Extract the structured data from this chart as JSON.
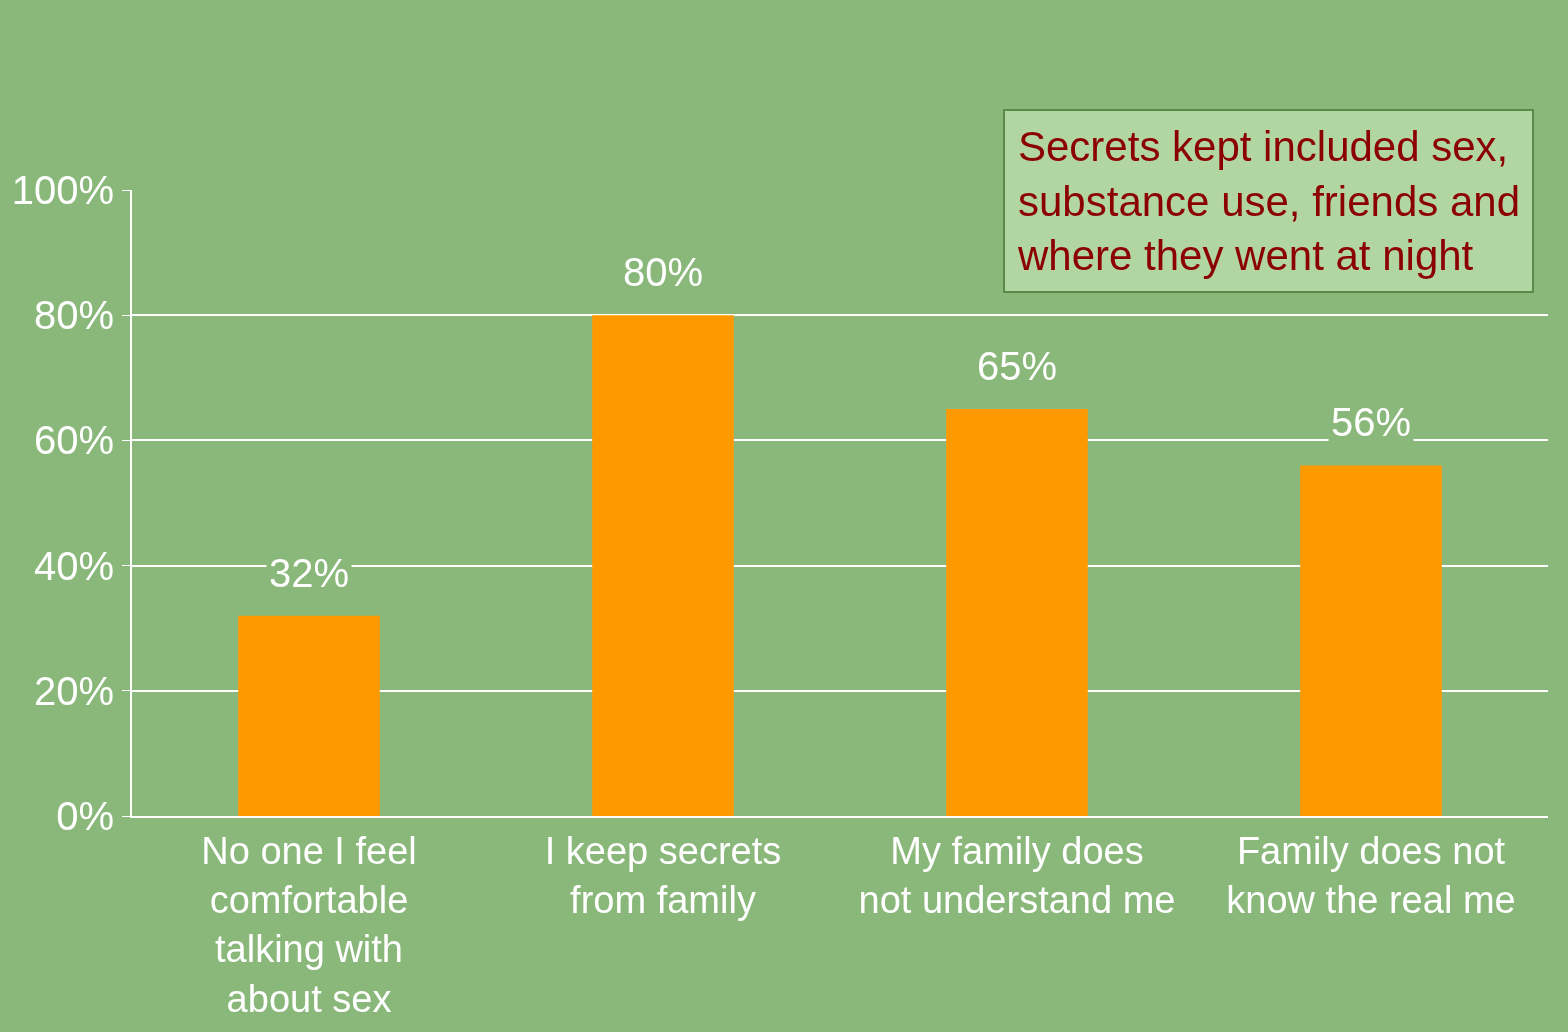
{
  "chart_data": {
    "type": "bar",
    "categories": [
      "No one I feel comfortable talking with about sex",
      "I keep secrets from family",
      "My family does not understand me",
      "Family does not know the real me"
    ],
    "values": [
      32,
      80,
      65,
      56
    ],
    "value_labels": [
      "32%",
      "80%",
      "65%",
      "56%"
    ],
    "color": "#ff9900",
    "ylim": [
      0,
      100
    ],
    "yticks": [
      {
        "value": 0,
        "label": "0%"
      },
      {
        "value": 20,
        "label": "20%"
      },
      {
        "value": 40,
        "label": "40%"
      },
      {
        "value": 60,
        "label": "60%"
      },
      {
        "value": 80,
        "label": "80%"
      },
      {
        "value": 100,
        "label": "100%"
      }
    ],
    "grid": "y",
    "annotations": [
      "Secrets kept included sex, substance use, friends and where they went at night"
    ]
  }
}
